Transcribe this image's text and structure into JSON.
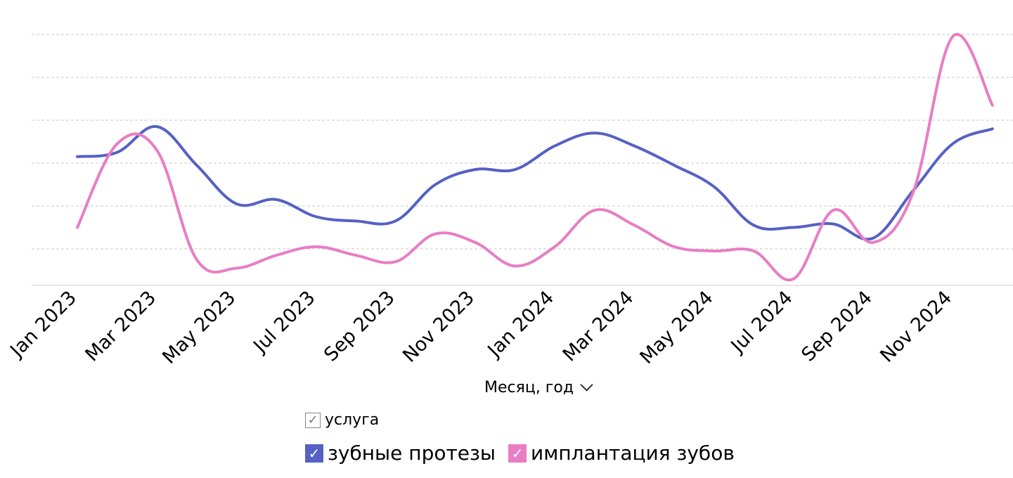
{
  "chart_data": {
    "type": "line",
    "x": [
      "Jan 2023",
      "Feb 2023",
      "Mar 2023",
      "Apr 2023",
      "May 2023",
      "Jun 2023",
      "Jul 2023",
      "Aug 2023",
      "Sep 2023",
      "Oct 2023",
      "Nov 2023",
      "Dec 2023",
      "Jan 2024",
      "Feb 2024",
      "Mar 2024",
      "Apr 2024",
      "May 2024",
      "Jun 2024",
      "Jul 2024",
      "Aug 2024",
      "Sep 2024",
      "Oct 2024",
      "Nov 2024",
      "Dec 2024"
    ],
    "tick_labels": [
      "Jan 2023",
      "Mar 2023",
      "May 2023",
      "Jul 2023",
      "Sep 2023",
      "Nov 2023",
      "Jan 2024",
      "Mar 2024",
      "May 2024",
      "Jul 2024",
      "Sep 2024",
      "Nov 2024"
    ],
    "series": [
      {
        "name": "зубные протезы",
        "color": "#5561c4",
        "values": [
          3.15,
          3.25,
          3.85,
          2.95,
          2.05,
          2.15,
          1.75,
          1.65,
          1.65,
          2.5,
          2.85,
          2.85,
          3.4,
          3.7,
          3.4,
          2.95,
          2.45,
          1.55,
          1.5,
          1.58,
          1.25,
          2.35,
          3.45,
          3.8
        ]
      },
      {
        "name": "имплантация зубов",
        "color": "#e87dc4",
        "values": [
          1.5,
          3.45,
          3.3,
          0.75,
          0.55,
          0.85,
          1.05,
          0.85,
          0.7,
          1.35,
          1.15,
          0.6,
          1.05,
          1.9,
          1.55,
          1.05,
          0.95,
          0.95,
          0.3,
          1.9,
          1.15,
          2.3,
          5.95,
          4.35
        ]
      }
    ],
    "ylim": [
      0,
      6
    ],
    "yticks": [
      1,
      2,
      3,
      4,
      5,
      6
    ],
    "grid": true,
    "xlabel": "Месяц, год",
    "legend_title": "услуга",
    "legend_position": "bottom"
  }
}
